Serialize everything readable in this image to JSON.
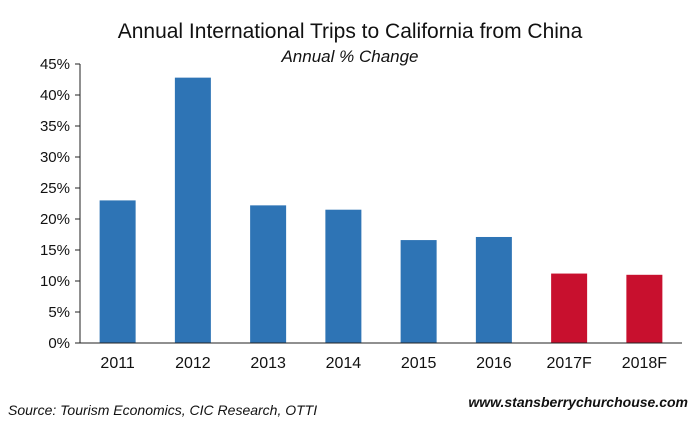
{
  "chart_data": {
    "type": "bar",
    "title": "Annual International Trips to California from China",
    "subtitle": "Annual % Change",
    "categories": [
      "2011",
      "2012",
      "2013",
      "2014",
      "2015",
      "2016",
      "2017F",
      "2018F"
    ],
    "values": [
      23.0,
      42.8,
      22.2,
      21.5,
      16.6,
      17.1,
      11.2,
      11.0
    ],
    "ylim": [
      0,
      45
    ],
    "yticks": [
      "0%",
      "5%",
      "10%",
      "15%",
      "20%",
      "25%",
      "30%",
      "35%",
      "40%",
      "45%"
    ],
    "grid": false,
    "colors": {
      "actual": "#2e74b5",
      "forecast": "#c8102e"
    },
    "forecast_categories": [
      "2017F",
      "2018F"
    ]
  },
  "footer": {
    "source": "Source: Tourism Economics, CIC Research, OTTI",
    "website": "www.stansberrychurchouse.com"
  }
}
